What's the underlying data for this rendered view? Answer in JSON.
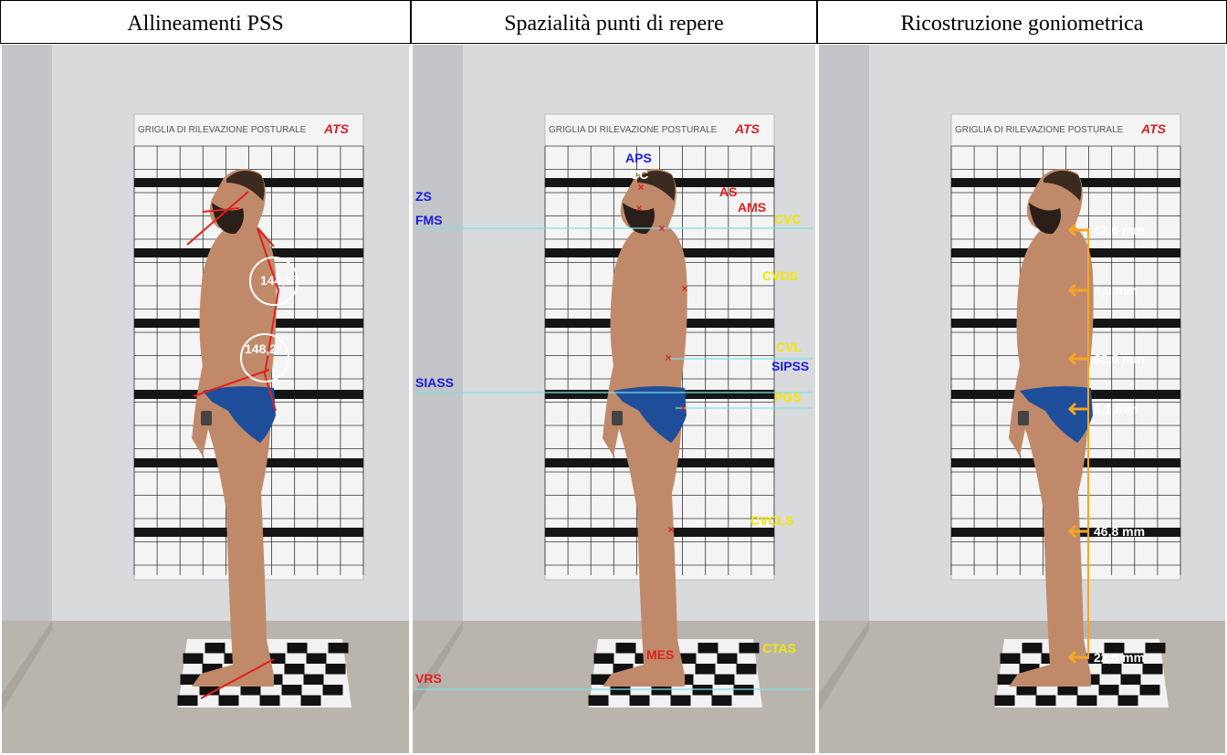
{
  "panels": [
    {
      "title": "Allineamenti PSS",
      "board": {
        "caption": "GRIGLIA DI RILEVAZIONE POSTURALE",
        "brand": "ATS"
      },
      "angles": [
        "144,9°",
        "148,2°"
      ]
    },
    {
      "title": "Spazialità punti di repere",
      "board": {
        "caption": "GRIGLIA DI RILEVAZIONE POSTURALE",
        "brand": "ATS"
      },
      "labels": [
        "APS",
        "CC",
        "ZS",
        "AS",
        "AMS",
        "FMS",
        "CVC",
        "CVDS",
        "CVL",
        "SIPSS",
        "SIASS",
        "PGS",
        "CVCLS",
        "CTAS",
        "MES",
        "VRS"
      ]
    },
    {
      "title": "Ricostruzione goniometrica",
      "board": {
        "caption": "GRIGLIA DI RILEVAZIONE POSTURALE",
        "brand": "ATS"
      },
      "measurements": [
        "82,6 mm",
        "0,0 mm",
        "63,6 mm",
        "5,1 mm",
        "46,8 mm",
        "22,8 mm"
      ]
    }
  ]
}
